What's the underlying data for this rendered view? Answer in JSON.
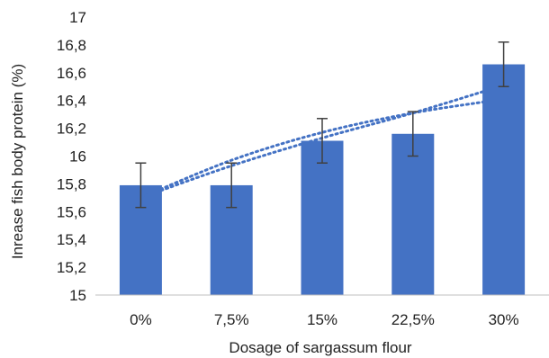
{
  "chart_data": {
    "type": "bar",
    "title": "",
    "xlabel": "Dosage of sargassum flour",
    "ylabel": "Inrease fish body protein  (%)",
    "categories": [
      "0%",
      "7,5%",
      "15%",
      "22,5%",
      "30%"
    ],
    "values": [
      15.79,
      15.79,
      16.11,
      16.16,
      16.66
    ],
    "error": [
      0.16,
      0.16,
      0.16,
      0.16,
      0.16
    ],
    "ylim": [
      15,
      17
    ],
    "yticks": [
      15,
      15.2,
      15.4,
      15.6,
      15.8,
      16,
      16.2,
      16.4,
      16.6,
      16.8,
      17
    ],
    "ytick_labels": [
      "15",
      "15,2",
      "15,4",
      "15,6",
      "15,8",
      "16",
      "16,2",
      "16,4",
      "16,6",
      "16,8",
      "17"
    ],
    "trendlines": [
      {
        "type": "dotted",
        "points": [
          15.7,
          15.97,
          16.17,
          16.31,
          16.41
        ]
      },
      {
        "type": "dotted",
        "points": [
          15.7,
          15.93,
          16.13,
          16.31,
          16.51
        ]
      }
    ],
    "grid": false,
    "legend": "none",
    "colors": {
      "bar": "#4472c4",
      "error_bar": "#404040",
      "trendline": "#4472c4",
      "axis": "#bfbfbf"
    }
  }
}
